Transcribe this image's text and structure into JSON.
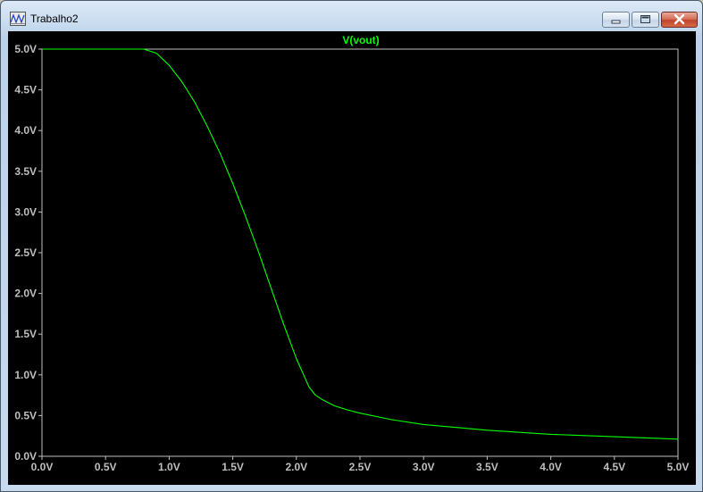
{
  "window": {
    "title": "Trabalho2",
    "icons": {
      "app": "waveform-viewer-icon",
      "minimize": "minimize-icon",
      "maximize": "maximize-icon",
      "close": "close-icon"
    }
  },
  "plot": {
    "trace_label": "V(vout)",
    "trace_color": "#00ff00",
    "axes_color": "#bfbfbf",
    "background": "#000000"
  },
  "chart_data": {
    "type": "line",
    "title": "",
    "xlabel": "",
    "ylabel": "",
    "xlim": [
      0,
      5
    ],
    "ylim": [
      0,
      5
    ],
    "grid": false,
    "x_ticks": [
      "0.0V",
      "0.5V",
      "1.0V",
      "1.5V",
      "2.0V",
      "2.5V",
      "3.0V",
      "3.5V",
      "4.0V",
      "4.5V",
      "5.0V"
    ],
    "y_ticks": [
      "0.0V",
      "0.5V",
      "1.0V",
      "1.5V",
      "2.0V",
      "2.5V",
      "3.0V",
      "3.5V",
      "4.0V",
      "4.5V",
      "5.0V"
    ],
    "series": [
      {
        "name": "V(vout)",
        "x": [
          0.0,
          0.5,
          0.8,
          0.9,
          1.0,
          1.1,
          1.2,
          1.3,
          1.4,
          1.5,
          1.6,
          1.7,
          1.8,
          1.9,
          2.0,
          2.1,
          2.15,
          2.2,
          2.3,
          2.4,
          2.5,
          2.75,
          3.0,
          3.5,
          4.0,
          4.5,
          5.0
        ],
        "y": [
          5.0,
          5.0,
          5.0,
          4.95,
          4.8,
          4.6,
          4.35,
          4.05,
          3.72,
          3.35,
          2.95,
          2.52,
          2.07,
          1.62,
          1.2,
          0.85,
          0.75,
          0.7,
          0.62,
          0.57,
          0.53,
          0.45,
          0.39,
          0.32,
          0.27,
          0.24,
          0.21
        ]
      }
    ]
  }
}
